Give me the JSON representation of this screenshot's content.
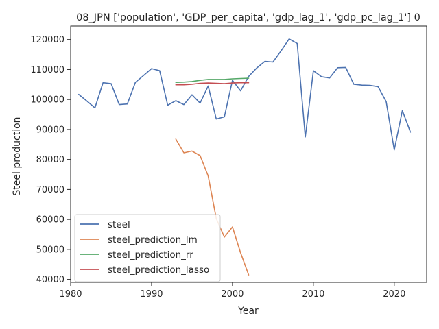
{
  "chart_data": {
    "type": "line",
    "title": "08_JPN ['population', 'GDP_per_capita', 'gdp_lag_1', 'gdp_pc_lag_1'] 0",
    "xlabel": "Year",
    "ylabel": "Steel production",
    "xlim": [
      1980,
      2024
    ],
    "ylim": [
      39000,
      124500
    ],
    "xticks": [
      1980,
      1990,
      2000,
      2010,
      2020
    ],
    "yticks": [
      40000,
      50000,
      60000,
      70000,
      80000,
      90000,
      100000,
      110000,
      120000
    ],
    "grid": false,
    "legend_position": "lower-left",
    "series": [
      {
        "name": "steel",
        "color": "#4c72b0",
        "x": [
          1981,
          1982,
          1983,
          1984,
          1985,
          1986,
          1987,
          1988,
          1989,
          1990,
          1991,
          1992,
          1993,
          1994,
          1995,
          1996,
          1997,
          1998,
          1999,
          2000,
          2001,
          2002,
          2003,
          2004,
          2005,
          2006,
          2007,
          2008,
          2009,
          2010,
          2011,
          2012,
          2013,
          2014,
          2015,
          2016,
          2017,
          2018,
          2019,
          2020,
          2021,
          2022
        ],
        "y": [
          101700,
          99500,
          97200,
          105600,
          105300,
          98300,
          98500,
          105700,
          108000,
          110300,
          109600,
          98100,
          99600,
          98300,
          101600,
          98800,
          104500,
          93500,
          94200,
          106400,
          102900,
          107700,
          110500,
          112700,
          112500,
          116200,
          120200,
          118700,
          87500,
          109600,
          107600,
          107200,
          110600,
          110700,
          105100,
          104800,
          104700,
          104300,
          99300,
          83200,
          96300,
          89100
        ]
      },
      {
        "name": "steel_prediction_lm",
        "color": "#dd8452",
        "x": [
          1993,
          1994,
          1995,
          1996,
          1997,
          1998,
          1999,
          2000,
          2001,
          2002
        ],
        "y": [
          86800,
          82200,
          82800,
          81300,
          74500,
          60300,
          54100,
          57500,
          48900,
          41500
        ]
      },
      {
        "name": "steel_prediction_rr",
        "color": "#55a868",
        "x": [
          1993,
          1994,
          1995,
          1996,
          1997,
          1998,
          1999,
          2000,
          2001,
          2002
        ],
        "y": [
          105700,
          105800,
          106000,
          106400,
          106700,
          106700,
          106700,
          106900,
          107000,
          107100
        ]
      },
      {
        "name": "steel_prediction_lasso",
        "color": "#c44e52",
        "x": [
          1993,
          1994,
          1995,
          1996,
          1997,
          1998,
          1999,
          2000,
          2001,
          2002
        ],
        "y": [
          104900,
          104900,
          105100,
          105400,
          105500,
          105400,
          105300,
          105500,
          105600,
          105600
        ]
      }
    ]
  }
}
